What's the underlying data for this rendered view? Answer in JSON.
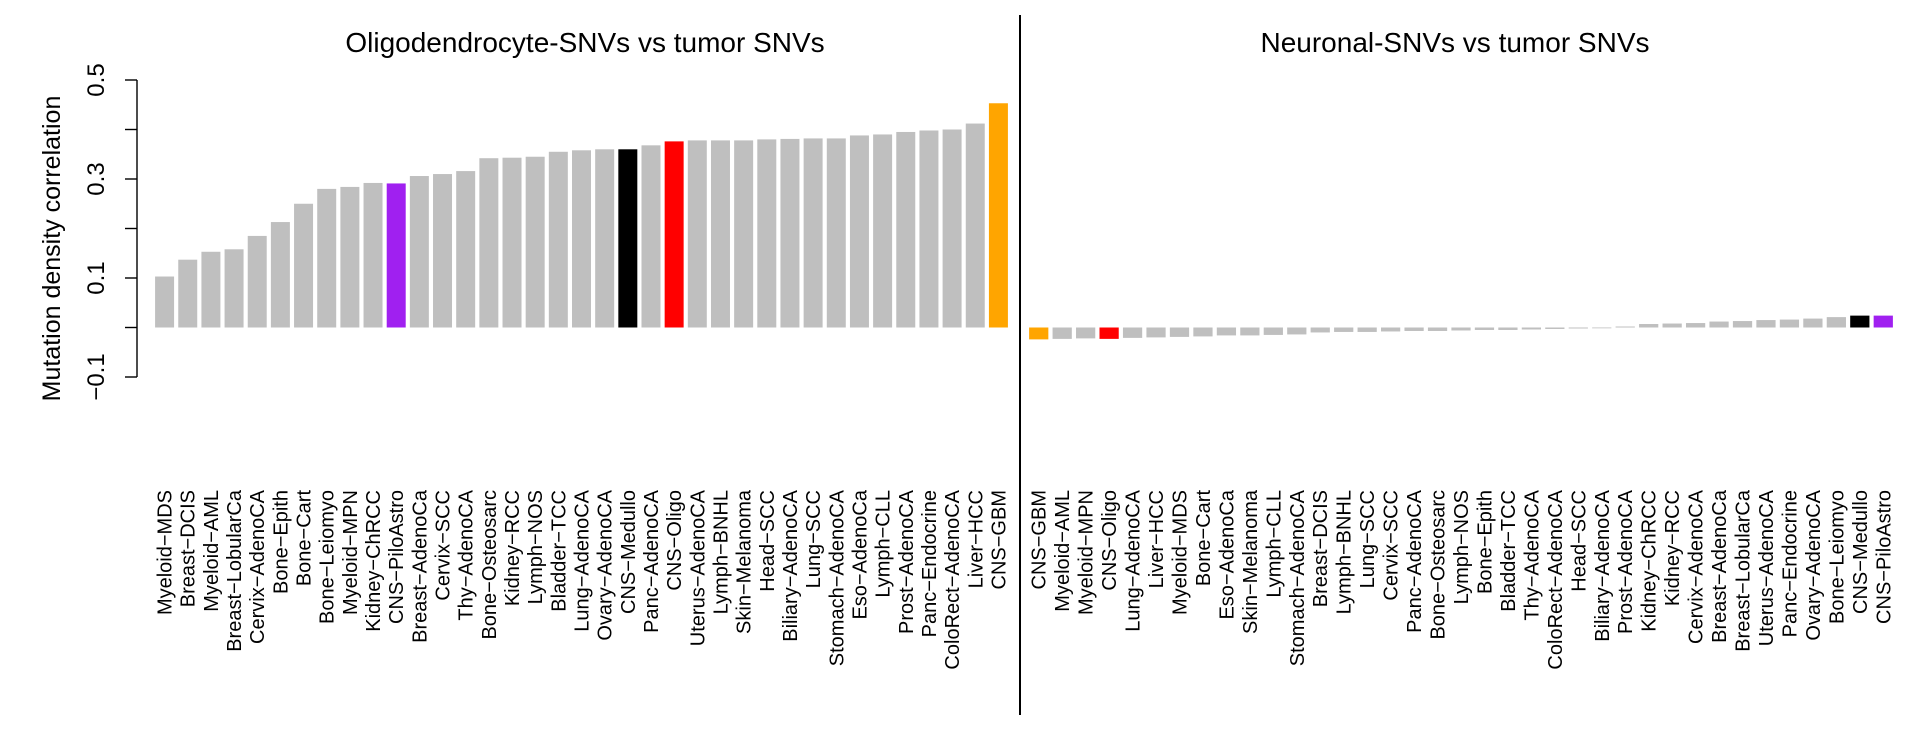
{
  "colors": {
    "default_bar": "#bfbfbf",
    "CNS-GBM": "#ffa500",
    "CNS-Oligo": "#ff0000",
    "CNS-Medullo": "#000000",
    "CNS-PiloAstro": "#a020f0",
    "axis": "#000000"
  },
  "chart_data": [
    {
      "type": "bar",
      "title": "Oligodendrocyte-SNVs vs tumor SNVs",
      "ylabel": "Mutation density correlation",
      "ylim": [
        -0.1,
        0.5
      ],
      "yticks": [
        -0.1,
        0.1,
        0.3,
        0.5
      ],
      "ytick_labels": [
        "−0.1",
        "0.1",
        "0.3",
        "0.5"
      ],
      "categories": [
        "Myeloid−MDS",
        "Breast−DCIS",
        "Myeloid−AML",
        "Breast−LobularCa",
        "Cervix−AdenoCA",
        "Bone−Epith",
        "Bone−Cart",
        "Bone−Leiomyo",
        "Myeloid−MPN",
        "Kidney−ChRCC",
        "CNS−PiloAstro",
        "Breast−AdenoCa",
        "Cervix−SCC",
        "Thy−AdenoCA",
        "Bone−Osteosarc",
        "Kidney−RCC",
        "Lymph−NOS",
        "Bladder−TCC",
        "Lung−AdenoCA",
        "Ovary−AdenoCA",
        "CNS−Medullo",
        "Panc−AdenoCA",
        "CNS−Oligo",
        "Uterus−AdenoCA",
        "Lymph−BNHL",
        "Skin−Melanoma",
        "Head−SCC",
        "Biliary−AdenoCA",
        "Lung−SCC",
        "Stomach−AdenoCA",
        "Eso−AdenoCa",
        "Lymph−CLL",
        "Prost−AdenoCA",
        "Panc−Endocrine",
        "ColoRect−AdenoCA",
        "Liver−HCC",
        "CNS−GBM"
      ],
      "values": [
        0.103,
        0.137,
        0.153,
        0.158,
        0.185,
        0.213,
        0.25,
        0.28,
        0.284,
        0.292,
        0.291,
        0.306,
        0.31,
        0.316,
        0.342,
        0.343,
        0.345,
        0.355,
        0.358,
        0.36,
        0.36,
        0.368,
        0.376,
        0.378,
        0.378,
        0.378,
        0.38,
        0.381,
        0.382,
        0.382,
        0.388,
        0.39,
        0.395,
        0.398,
        0.4,
        0.412,
        0.453
      ]
    },
    {
      "type": "bar",
      "title": "Neuronal-SNVs vs tumor SNVs",
      "ylim": [
        -0.1,
        0.5
      ],
      "categories": [
        "CNS−GBM",
        "Myeloid−AML",
        "Myeloid−MPN",
        "CNS−Oligo",
        "Lung−AdenoCA",
        "Liver−HCC",
        "Myeloid−MDS",
        "Bone−Cart",
        "Eso−AdenoCa",
        "Skin−Melanoma",
        "Lymph−CLL",
        "Stomach−AdenoCA",
        "Breast−DCIS",
        "Lymph−BNHL",
        "Lung−SCC",
        "Cervix−SCC",
        "Panc−AdenoCA",
        "Bone−Osteosarc",
        "Lymph−NOS",
        "Bone−Epith",
        "Bladder−TCC",
        "Thy−AdenoCA",
        "ColoRect−AdenoCA",
        "Head−SCC",
        "Biliary−AdenoCA",
        "Prost−AdenoCA",
        "Kidney−ChRCC",
        "Kidney−RCC",
        "Cervix−AdenoCA",
        "Breast−AdenoCa",
        "Breast−LobularCa",
        "Uterus−AdenoCA",
        "Panc−Endocrine",
        "Ovary−AdenoCA",
        "Bone−Leiomyo",
        "CNS−Medullo",
        "CNS−PiloAstro"
      ],
      "values": [
        -0.024,
        -0.023,
        -0.022,
        -0.023,
        -0.021,
        -0.02,
        -0.019,
        -0.018,
        -0.016,
        -0.016,
        -0.015,
        -0.014,
        -0.01,
        -0.009,
        -0.009,
        -0.008,
        -0.007,
        -0.007,
        -0.006,
        -0.005,
        -0.005,
        -0.004,
        -0.003,
        -0.002,
        -0.001,
        0.002,
        0.007,
        0.008,
        0.009,
        0.012,
        0.013,
        0.015,
        0.016,
        0.018,
        0.021,
        0.024,
        0.024
      ]
    }
  ]
}
